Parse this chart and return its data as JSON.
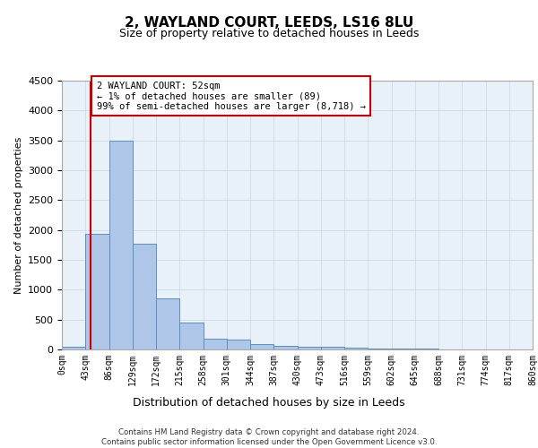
{
  "title_line1": "2, WAYLAND COURT, LEEDS, LS16 8LU",
  "title_line2": "Size of property relative to detached houses in Leeds",
  "xlabel": "Distribution of detached houses by size in Leeds",
  "ylabel": "Number of detached properties",
  "bar_edges": [
    0,
    43,
    86,
    129,
    172,
    215,
    258,
    301,
    344,
    387,
    430,
    473,
    516,
    559,
    602,
    645,
    688,
    731,
    774,
    817,
    860
  ],
  "bar_heights": [
    40,
    1930,
    3500,
    1770,
    850,
    450,
    175,
    165,
    90,
    65,
    50,
    40,
    30,
    15,
    10,
    8,
    5,
    3,
    2,
    1
  ],
  "bar_color": "#aec6e8",
  "bar_edgecolor": "#5a8fc2",
  "vline_x": 52,
  "vline_color": "#cc0000",
  "ylim": [
    0,
    4500
  ],
  "yticks": [
    0,
    500,
    1000,
    1500,
    2000,
    2500,
    3000,
    3500,
    4000,
    4500
  ],
  "annotation_text": "2 WAYLAND COURT: 52sqm\n← 1% of detached houses are smaller (89)\n99% of semi-detached houses are larger (8,718) →",
  "annotation_box_color": "#ffffff",
  "annotation_box_edgecolor": "#cc0000",
  "grid_color": "#ccd9e8",
  "background_color": "#e8f0f8",
  "footer_line1": "Contains HM Land Registry data © Crown copyright and database right 2024.",
  "footer_line2": "Contains public sector information licensed under the Open Government Licence v3.0.",
  "tick_labels": [
    "0sqm",
    "43sqm",
    "86sqm",
    "129sqm",
    "172sqm",
    "215sqm",
    "258sqm",
    "301sqm",
    "344sqm",
    "387sqm",
    "430sqm",
    "473sqm",
    "516sqm",
    "559sqm",
    "602sqm",
    "645sqm",
    "688sqm",
    "731sqm",
    "774sqm",
    "817sqm",
    "860sqm"
  ]
}
